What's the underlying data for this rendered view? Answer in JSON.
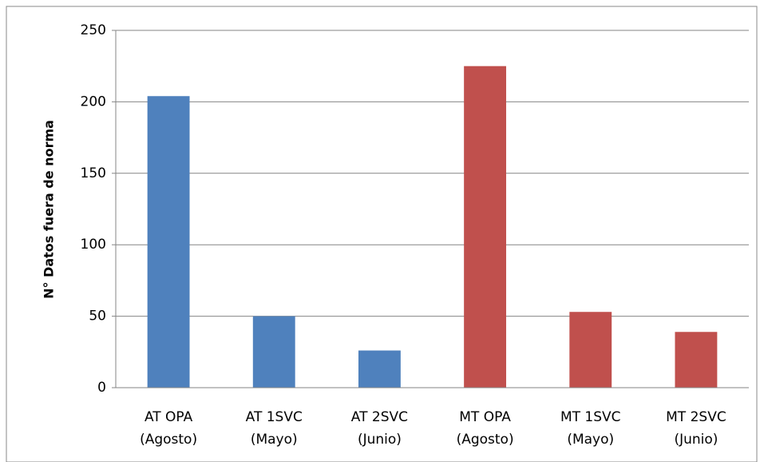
{
  "chart_data": {
    "type": "bar",
    "y_label": "N° Datos fuera de norma",
    "categories": [
      [
        "AT OPA",
        "(Agosto)"
      ],
      [
        "AT 1SVC",
        "(Mayo)"
      ],
      [
        "AT 2SVC",
        "(Junio)"
      ],
      [
        "MT OPA",
        "(Agosto)"
      ],
      [
        "MT 1SVC",
        "(Mayo)"
      ],
      [
        "MT 2SVC",
        "(Junio)"
      ]
    ],
    "values": [
      204,
      50,
      26,
      225,
      53,
      39
    ],
    "colors": [
      "#4f81bd",
      "#4f81bd",
      "#4f81bd",
      "#c0504d",
      "#c0504d",
      "#c0504d"
    ],
    "ylim": [
      0,
      250
    ],
    "yticks": [
      0,
      50,
      100,
      150,
      200,
      250
    ],
    "grid": true
  }
}
